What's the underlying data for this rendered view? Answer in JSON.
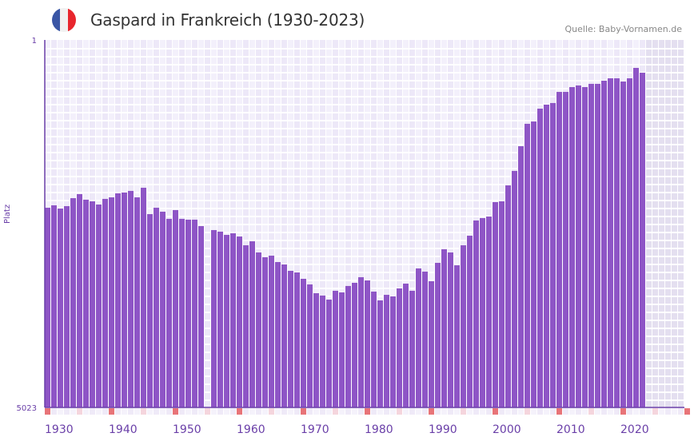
{
  "header": {
    "title": "Gaspard in Frankreich (1930-2023)",
    "source": "Quelle: Baby-Vornamen.de",
    "flag_icon": "france-flag-icon"
  },
  "colors": {
    "bar": "#8e55c6",
    "axis": "#6a3fa8",
    "grid_a": "#f3f0fb",
    "grid_b": "#ede8f8",
    "future": "#e4dff0",
    "marker_decade": "#e87478",
    "marker_half": "#f5d5dd"
  },
  "chart_data": {
    "type": "bar",
    "title": "Gaspard in Frankreich (1930-2023)",
    "xlabel": "",
    "ylabel": "Platz",
    "y_inverted": true,
    "ylim": [
      1,
      5023
    ],
    "xlim": [
      1930,
      2030
    ],
    "y_tick_labels": [
      "1",
      "5023"
    ],
    "x_tick_labels": [
      "1930",
      "1940",
      "1950",
      "1960",
      "1970",
      "1980",
      "1990",
      "2000",
      "2010",
      "2020"
    ],
    "grid": true,
    "x": [
      1930,
      1931,
      1932,
      1933,
      1934,
      1935,
      1936,
      1937,
      1938,
      1939,
      1940,
      1941,
      1942,
      1943,
      1944,
      1945,
      1946,
      1947,
      1948,
      1949,
      1950,
      1951,
      1952,
      1953,
      1954,
      1955,
      1956,
      1957,
      1958,
      1959,
      1960,
      1961,
      1962,
      1963,
      1964,
      1965,
      1966,
      1967,
      1968,
      1969,
      1970,
      1971,
      1972,
      1973,
      1974,
      1975,
      1976,
      1977,
      1978,
      1979,
      1980,
      1981,
      1982,
      1983,
      1984,
      1985,
      1986,
      1987,
      1988,
      1989,
      1990,
      1991,
      1992,
      1993,
      1994,
      1995,
      1996,
      1997,
      1998,
      1999,
      2000,
      2001,
      2002,
      2003,
      2004,
      2005,
      2006,
      2007,
      2008,
      2009,
      2010,
      2011,
      2012,
      2013,
      2014,
      2015,
      2016,
      2017,
      2018,
      2019,
      2020,
      2021,
      2022,
      2023
    ],
    "values": [
      2294,
      2261,
      2305,
      2272,
      2163,
      2108,
      2184,
      2206,
      2250,
      2173,
      2152,
      2097,
      2086,
      2064,
      2152,
      2021,
      2381,
      2294,
      2348,
      2446,
      2326,
      2446,
      2457,
      2457,
      2545,
      null,
      2599,
      2621,
      2665,
      2643,
      2687,
      2807,
      2752,
      2905,
      2970,
      2949,
      3036,
      3069,
      3156,
      3178,
      3265,
      3342,
      3462,
      3494,
      3549,
      3429,
      3451,
      3363,
      3320,
      3243,
      3287,
      3440,
      3560,
      3484,
      3505,
      3396,
      3331,
      3429,
      3123,
      3167,
      3298,
      3047,
      2861,
      2905,
      3080,
      2807,
      2676,
      2468,
      2435,
      2414,
      2217,
      2206,
      1988,
      1791,
      1453,
      1147,
      1115,
      940,
      885,
      863,
      711,
      711,
      645,
      623,
      645,
      601,
      601,
      558,
      525,
      525,
      569,
      525,
      383,
      449
    ]
  }
}
